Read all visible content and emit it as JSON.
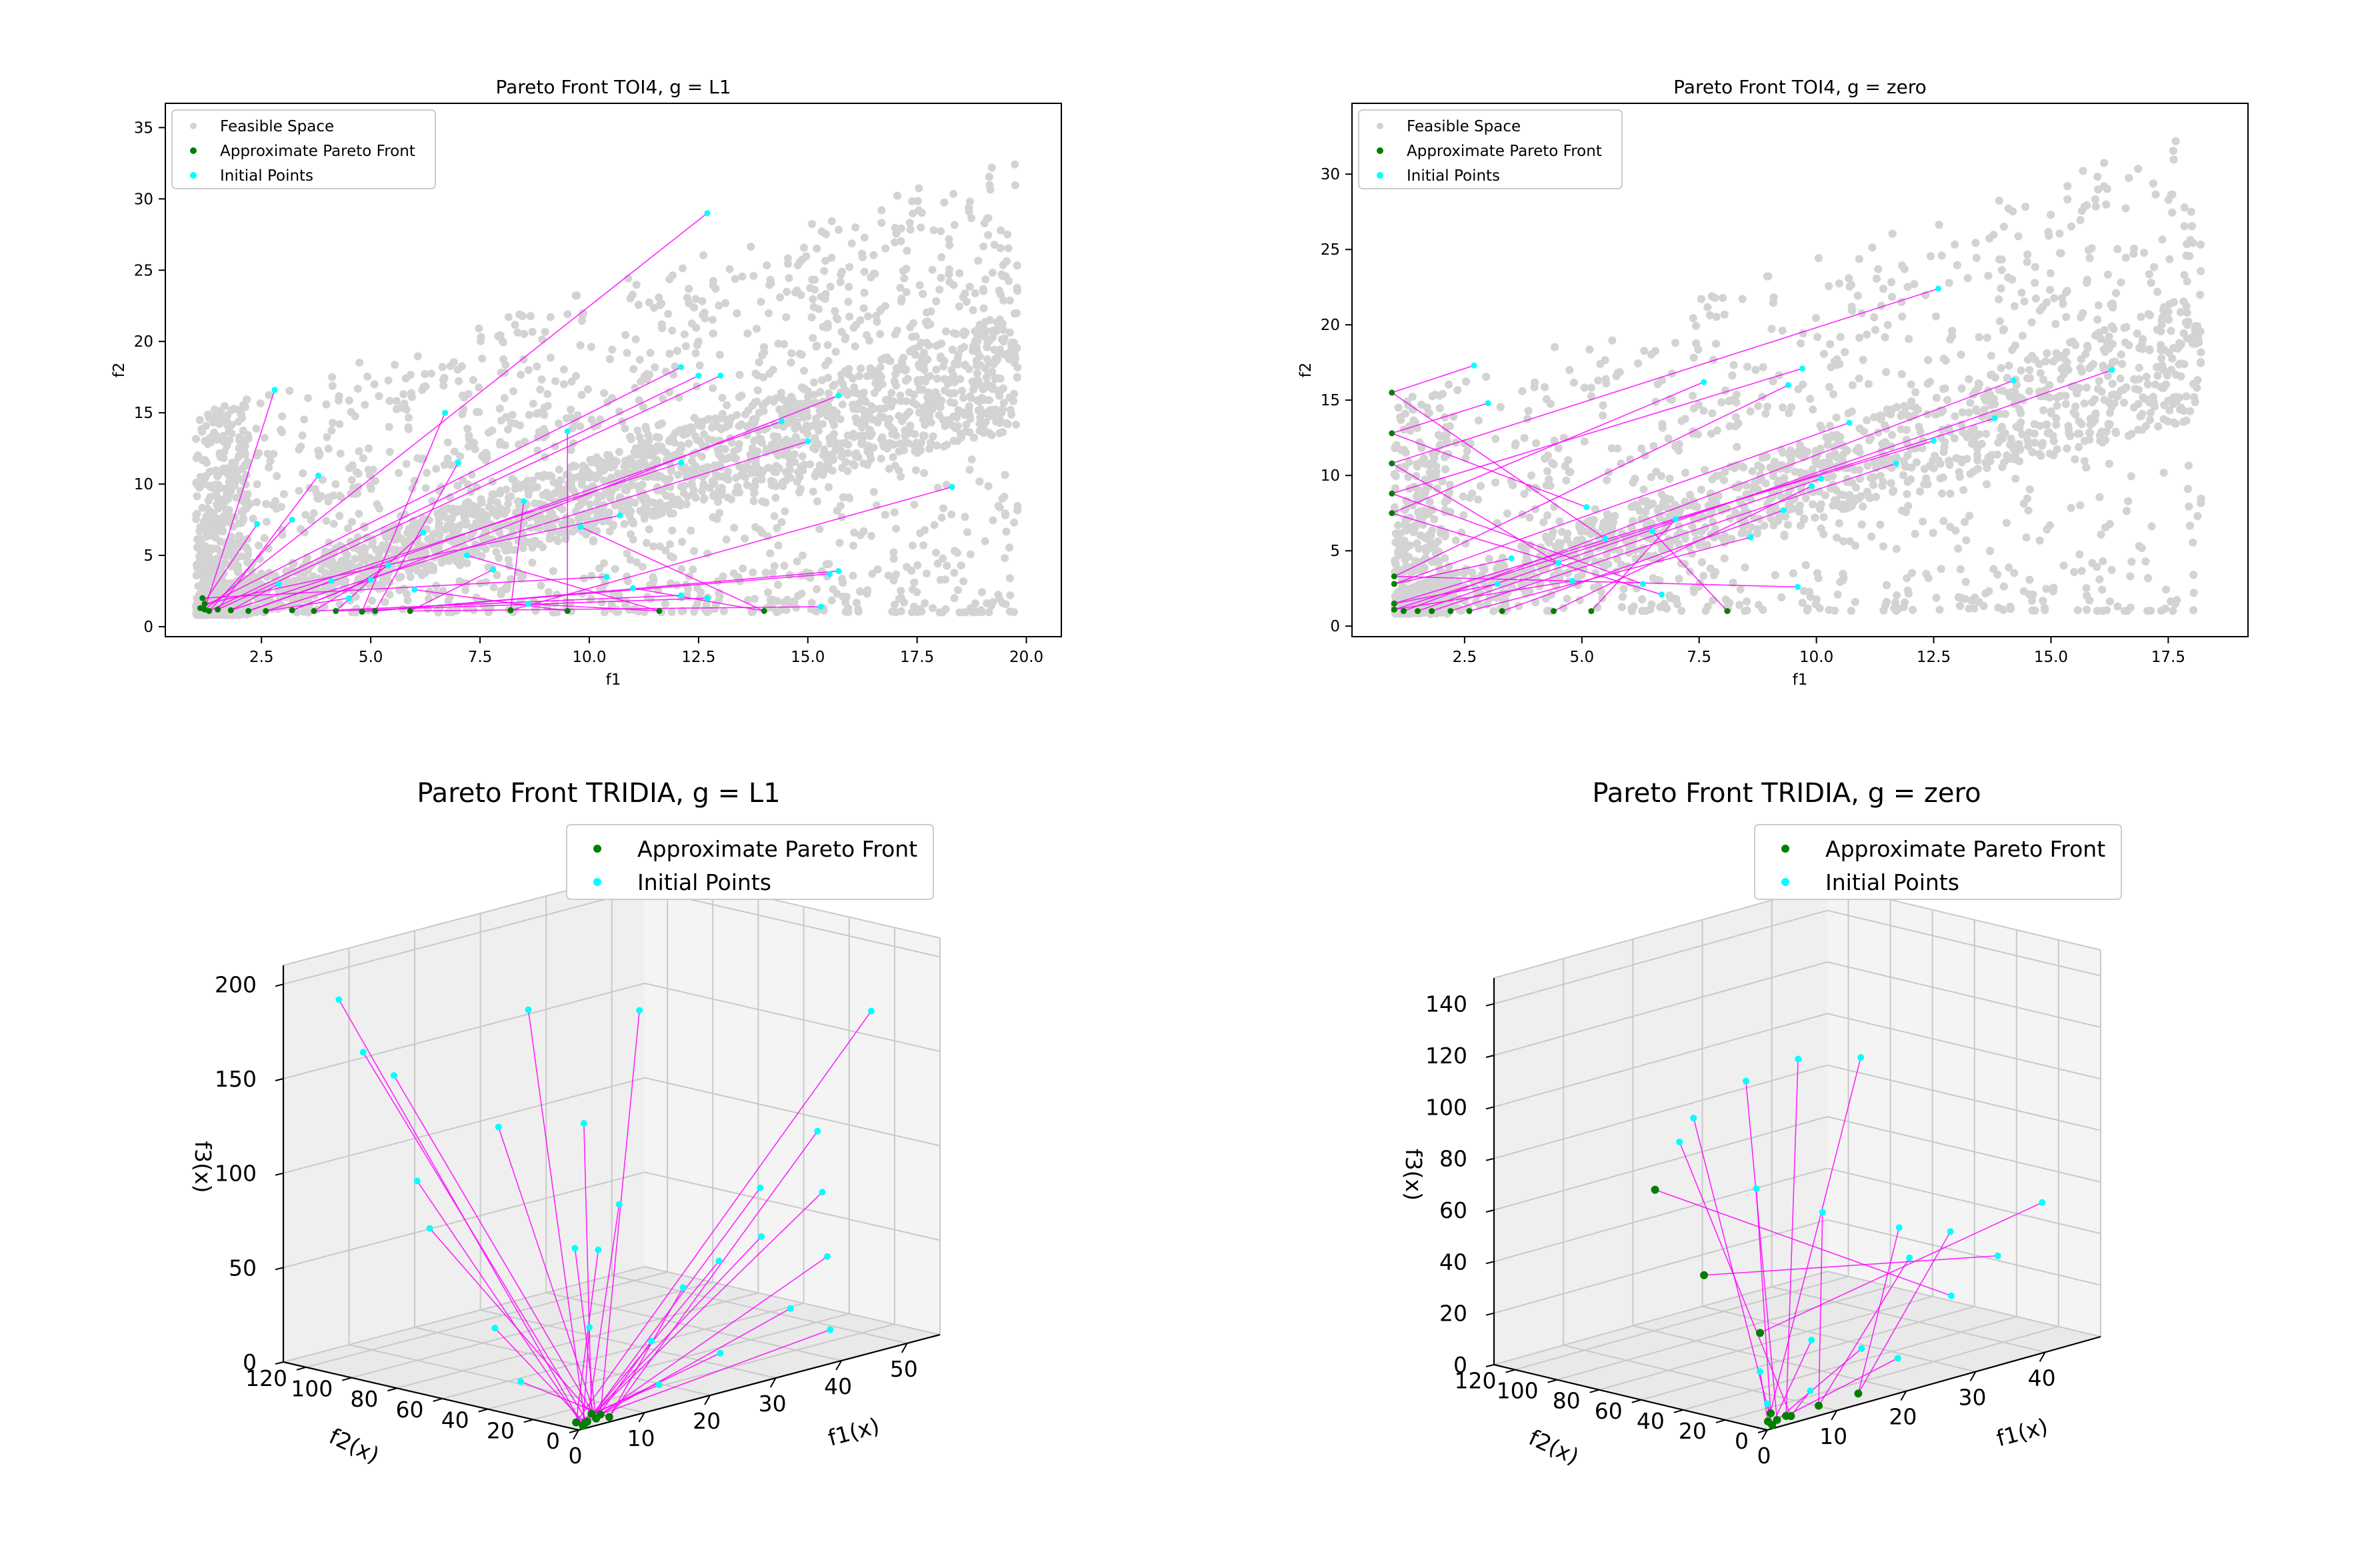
{
  "chart_data": [
    {
      "type": "scatter",
      "title": "Pareto Front TOI4, g = L1",
      "xlabel": "f1",
      "ylabel": "f2",
      "xlim": [
        0.3,
        20.8
      ],
      "ylim": [
        -0.7,
        36.7
      ],
      "xticks": [
        "2.5",
        "5.0",
        "7.5",
        "10.0",
        "12.5",
        "15.0",
        "17.5",
        "20.0"
      ],
      "yticks": [
        "0",
        "5",
        "10",
        "15",
        "20",
        "25",
        "30",
        "35"
      ],
      "legend_position": "upper left",
      "legend": [
        "Feasible Space",
        "Approximate Pareto Front",
        "Initial Points"
      ],
      "colors": {
        "feasible": "#d3d3d3",
        "pareto": "#007f00",
        "initial": "#00ffff",
        "path": "#ff00ff"
      },
      "pareto_front": [
        [
          1.1,
          1.3
        ],
        [
          1.2,
          1.2
        ],
        [
          1.3,
          1.1
        ],
        [
          1.5,
          1.2
        ],
        [
          1.8,
          1.15
        ],
        [
          2.2,
          1.1
        ],
        [
          2.6,
          1.1
        ],
        [
          3.2,
          1.15
        ],
        [
          3.7,
          1.1
        ],
        [
          4.2,
          1.1
        ],
        [
          4.8,
          1.05
        ],
        [
          5.1,
          1.1
        ],
        [
          5.9,
          1.1
        ],
        [
          8.2,
          1.15
        ],
        [
          9.5,
          1.1
        ],
        [
          11.6,
          1.1
        ],
        [
          14.0,
          1.1
        ],
        [
          1.15,
          2.0
        ],
        [
          1.2,
          1.6
        ]
      ],
      "initial_points": [
        [
          2.4,
          7.2
        ],
        [
          2.8,
          16.6
        ],
        [
          3.2,
          7.5
        ],
        [
          3.8,
          10.6
        ],
        [
          2.9,
          3.0
        ],
        [
          4.1,
          3.2
        ],
        [
          4.5,
          2.0
        ],
        [
          5.0,
          3.3
        ],
        [
          5.4,
          4.3
        ],
        [
          6.2,
          6.6
        ],
        [
          6.7,
          15.0
        ],
        [
          7.0,
          11.5
        ],
        [
          7.8,
          4.0
        ],
        [
          8.5,
          8.8
        ],
        [
          9.5,
          13.7
        ],
        [
          8.6,
          1.6
        ],
        [
          9.8,
          7.0
        ],
        [
          10.4,
          3.5
        ],
        [
          10.7,
          7.8
        ],
        [
          12.1,
          18.2
        ],
        [
          12.7,
          29.0
        ],
        [
          12.5,
          17.6
        ],
        [
          13.0,
          17.6
        ],
        [
          12.1,
          11.5
        ],
        [
          14.4,
          14.4
        ],
        [
          15.0,
          13.0
        ],
        [
          15.7,
          16.2
        ],
        [
          12.1,
          2.2
        ],
        [
          12.7,
          2.0
        ],
        [
          15.5,
          3.7
        ],
        [
          15.7,
          3.9
        ],
        [
          15.3,
          1.4
        ],
        [
          18.3,
          9.8
        ],
        [
          6.0,
          2.6
        ],
        [
          7.2,
          5.0
        ],
        [
          11.0,
          2.7
        ]
      ],
      "feasible_description": "dense cloud of about 20000 points"
    },
    {
      "type": "scatter",
      "title": "Pareto Front TOI4, g = zero",
      "xlabel": "f1",
      "ylabel": "f2",
      "xlim": [
        0.1,
        19.2
      ],
      "ylim": [
        -0.7,
        34.7
      ],
      "xticks": [
        "2.5",
        "5.0",
        "7.5",
        "10.0",
        "12.5",
        "15.0",
        "17.5"
      ],
      "yticks": [
        "0",
        "5",
        "10",
        "15",
        "20",
        "25",
        "30"
      ],
      "legend_position": "upper left",
      "legend": [
        "Feasible Space",
        "Approximate Pareto Front",
        "Initial Points"
      ],
      "colors": {
        "feasible": "#d3d3d3",
        "pareto": "#007f00",
        "initial": "#00ffff",
        "path": "#ff00ff"
      },
      "pareto_front": [
        [
          0.95,
          15.5
        ],
        [
          0.95,
          12.8
        ],
        [
          0.95,
          10.8
        ],
        [
          0.95,
          8.8
        ],
        [
          0.95,
          7.5
        ],
        [
          1.0,
          3.3
        ],
        [
          1.0,
          2.8
        ],
        [
          1.0,
          1.5
        ],
        [
          1.0,
          1.1
        ],
        [
          1.2,
          1.0
        ],
        [
          1.5,
          1.0
        ],
        [
          1.8,
          1.0
        ],
        [
          2.2,
          1.0
        ],
        [
          2.6,
          1.0
        ],
        [
          3.3,
          1.0
        ],
        [
          4.4,
          1.0
        ],
        [
          5.2,
          1.0
        ],
        [
          8.1,
          1.0
        ]
      ],
      "initial_points": [
        [
          2.7,
          17.3
        ],
        [
          3.0,
          14.8
        ],
        [
          12.6,
          22.4
        ],
        [
          9.7,
          17.1
        ],
        [
          7.6,
          16.2
        ],
        [
          9.4,
          16.0
        ],
        [
          10.7,
          13.5
        ],
        [
          12.5,
          12.3
        ],
        [
          13.8,
          13.8
        ],
        [
          14.2,
          16.3
        ],
        [
          16.3,
          17.0
        ],
        [
          10.1,
          9.8
        ],
        [
          11.7,
          10.8
        ],
        [
          8.6,
          5.9
        ],
        [
          9.3,
          7.7
        ],
        [
          9.9,
          9.3
        ],
        [
          7.0,
          7.1
        ],
        [
          6.5,
          6.3
        ],
        [
          5.5,
          5.8
        ],
        [
          5.1,
          7.9
        ],
        [
          4.5,
          4.2
        ],
        [
          6.3,
          2.8
        ],
        [
          6.7,
          2.1
        ],
        [
          9.6,
          2.6
        ],
        [
          3.5,
          4.5
        ],
        [
          3.2,
          2.8
        ],
        [
          4.8,
          3.0
        ]
      ],
      "feasible_description": "dense cloud of about 20000 points"
    },
    {
      "type": "scatter3d",
      "title": "Pareto Front TRIDIA, g = L1",
      "xlabel": "f1(x)",
      "ylabel": "f2(x)",
      "zlabel": "f3(x)",
      "xlim": [
        0,
        55
      ],
      "ylim": [
        0,
        130
      ],
      "zlim": [
        0,
        210
      ],
      "xticks": [
        "0",
        "10",
        "20",
        "30",
        "40",
        "50"
      ],
      "yticks": [
        "0",
        "20",
        "40",
        "60",
        "80",
        "100",
        "120"
      ],
      "zticks": [
        "0",
        "50",
        "100",
        "150",
        "200"
      ],
      "legend_position": "upper right",
      "legend": [
        "Approximate Pareto Front",
        "Initial Points"
      ],
      "pareto_front": [
        [
          1,
          1,
          1
        ],
        [
          2,
          2,
          2
        ],
        [
          3,
          1,
          3
        ],
        [
          2,
          3,
          1
        ],
        [
          4,
          2,
          4
        ],
        [
          1,
          4,
          2
        ],
        [
          3,
          3,
          5
        ],
        [
          5,
          1,
          2
        ]
      ],
      "initial_points": [
        [
          5,
          120,
          190
        ],
        [
          8,
          118,
          160
        ],
        [
          3,
          90,
          160
        ],
        [
          20,
          80,
          182
        ],
        [
          30,
          60,
          178
        ],
        [
          48,
          10,
          175
        ],
        [
          25,
          70,
          120
        ],
        [
          45,
          25,
          110
        ],
        [
          10,
          100,
          95
        ],
        [
          38,
          30,
          85
        ],
        [
          15,
          45,
          70
        ],
        [
          33,
          15,
          68
        ],
        [
          42,
          12,
          50
        ],
        [
          22,
          55,
          60
        ],
        [
          5,
          80,
          80
        ],
        [
          28,
          35,
          40
        ],
        [
          12,
          30,
          35
        ],
        [
          35,
          8,
          30
        ],
        [
          18,
          20,
          25
        ],
        [
          8,
          60,
          30
        ],
        [
          40,
          5,
          15
        ],
        [
          25,
          10,
          15
        ],
        [
          15,
          8,
          8
        ],
        [
          5,
          40,
          10
        ],
        [
          30,
          25,
          55
        ],
        [
          20,
          40,
          90
        ],
        [
          12,
          70,
          130
        ],
        [
          44,
          20,
          80
        ]
      ]
    },
    {
      "type": "scatter3d",
      "title": "Pareto Front TRIDIA, g = zero",
      "xlabel": "f1(x)",
      "ylabel": "f2(x)",
      "zlabel": "f3(x)",
      "xlim": [
        0,
        48
      ],
      "ylim": [
        0,
        130
      ],
      "zlim": [
        0,
        150
      ],
      "xticks": [
        "0",
        "10",
        "20",
        "30",
        "40"
      ],
      "yticks": [
        "0",
        "20",
        "40",
        "60",
        "80",
        "100",
        "120"
      ],
      "zticks": [
        "0",
        "20",
        "40",
        "60",
        "80",
        "100",
        "120",
        "140"
      ],
      "legend_position": "upper right",
      "legend": [
        "Approximate Pareto Front",
        "Initial Points"
      ],
      "pareto_front": [
        [
          1,
          1,
          1
        ],
        [
          2,
          2,
          2
        ],
        [
          3,
          1,
          3
        ],
        [
          1,
          3,
          2
        ],
        [
          4,
          2,
          2
        ],
        [
          2,
          5,
          4
        ],
        [
          8,
          2,
          3
        ],
        [
          14,
          3,
          3
        ],
        [
          5,
          20,
          30
        ],
        [
          3,
          40,
          50
        ],
        [
          2,
          60,
          80
        ]
      ],
      "initial_points": [
        [
          3,
          45,
          110
        ],
        [
          6,
          30,
          125
        ],
        [
          12,
          25,
          130
        ],
        [
          18,
          15,
          128
        ],
        [
          4,
          55,
          98
        ],
        [
          9,
          35,
          80
        ],
        [
          14,
          20,
          70
        ],
        [
          22,
          10,
          60
        ],
        [
          42,
          8,
          55
        ],
        [
          35,
          6,
          40
        ],
        [
          28,
          5,
          30
        ],
        [
          10,
          12,
          25
        ],
        [
          16,
          8,
          18
        ],
        [
          20,
          4,
          12
        ],
        [
          5,
          20,
          15
        ],
        [
          8,
          6,
          8
        ],
        [
          3,
          10,
          6
        ],
        [
          25,
          15,
          45
        ],
        [
          30,
          12,
          52
        ]
      ]
    }
  ]
}
